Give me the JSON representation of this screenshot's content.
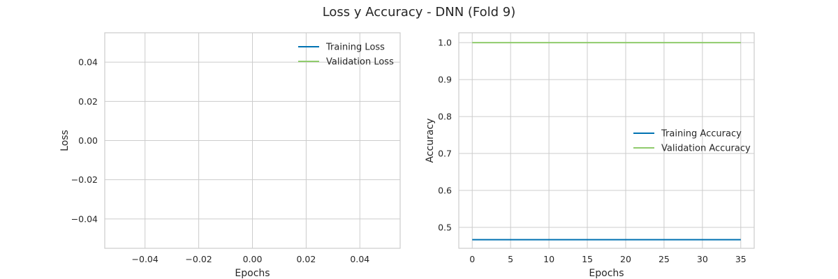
{
  "figure_title": "Loss y Accuracy - DNN (Fold 9)",
  "colors": {
    "training": "#0072b2",
    "validation": "#8fcb6c",
    "grid": "#cccccc"
  },
  "chart_data": [
    {
      "type": "line",
      "xlabel": "Epochs",
      "ylabel": "Loss",
      "xlim": [
        -0.055,
        0.055
      ],
      "ylim": [
        -0.055,
        0.055
      ],
      "xticks": [
        -0.04,
        -0.02,
        0.0,
        0.02,
        0.04
      ],
      "xtick_labels": [
        "−0.04",
        "−0.02",
        "0.00",
        "0.02",
        "0.04"
      ],
      "yticks": [
        0.04,
        0.02,
        0.0,
        -0.02,
        -0.04
      ],
      "ytick_labels": [
        "0.04",
        "0.02",
        "0.00",
        "−0.02",
        "−0.04"
      ],
      "grid": true,
      "legend_position": "top-right",
      "series": [
        {
          "name": "Training Loss",
          "color": "#0072b2",
          "x": [],
          "y": []
        },
        {
          "name": "Validation Loss",
          "color": "#8fcb6c",
          "x": [],
          "y": []
        }
      ]
    },
    {
      "type": "line",
      "xlabel": "Epochs",
      "ylabel": "Accuracy",
      "xlim": [
        -1.75,
        36.75
      ],
      "ylim": [
        0.4433,
        1.0267
      ],
      "xticks": [
        0,
        5,
        10,
        15,
        20,
        25,
        30,
        35
      ],
      "xtick_labels": [
        "0",
        "5",
        "10",
        "15",
        "20",
        "25",
        "30",
        "35"
      ],
      "yticks": [
        1.0,
        0.9,
        0.8,
        0.7,
        0.6,
        0.5
      ],
      "ytick_labels": [
        "1.0",
        "0.9",
        "0.8",
        "0.7",
        "0.6",
        "0.5"
      ],
      "grid": true,
      "legend_position": "center-right",
      "series": [
        {
          "name": "Training Accuracy",
          "color": "#0072b2",
          "x": [
            0,
            35
          ],
          "y": [
            0.4667,
            0.4667
          ]
        },
        {
          "name": "Validation Accuracy",
          "color": "#8fcb6c",
          "x": [
            0,
            35
          ],
          "y": [
            1.0,
            1.0
          ]
        }
      ]
    }
  ]
}
